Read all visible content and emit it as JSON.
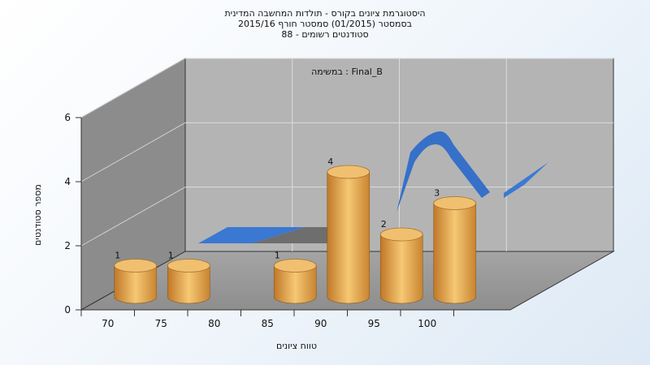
{
  "title": {
    "lines": [
      "היסטוגרמת ציונים בקורס - תולדות המחשבה המדינית",
      "בסמסטר  (01/2015)  סמסטר חורף 2015/16",
      "סטודנטים רשומים - 88"
    ]
  },
  "chart_data": {
    "type": "bar",
    "subtitle": "במשימה : Final_B",
    "xlabel": "טווח ציונים",
    "ylabel": "מספר סטודנטים",
    "x_ticks": [
      "70",
      "75",
      "80",
      "85",
      "90",
      "95",
      "100"
    ],
    "y_ticks": [
      "0",
      "2",
      "4",
      "6"
    ],
    "ylim": [
      0,
      6
    ],
    "categories": [
      "70",
      "75",
      "85",
      "90",
      "95",
      "100"
    ],
    "series": [
      {
        "values": [
          1,
          1,
          1,
          4,
          2,
          3
        ]
      }
    ],
    "grid": true,
    "colors": {
      "bar": "#e0a048",
      "bar_top": "#f0c070",
      "line_ribbon": "#3a7ad0",
      "ribbon_shadow": "#707070",
      "back_wall": "#b4b4b4",
      "side_wall": "#8c8c8c",
      "floor": "#a0a0a0"
    }
  }
}
